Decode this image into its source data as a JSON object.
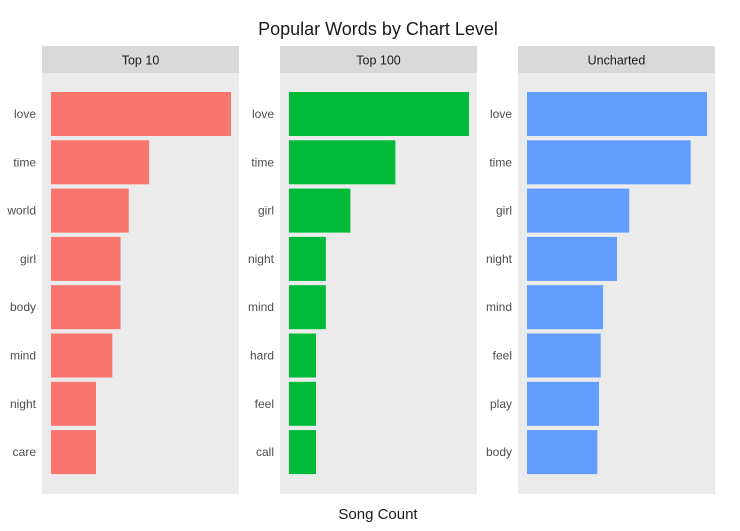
{
  "chart_data": {
    "type": "bar",
    "orientation": "horizontal",
    "title": "Popular Words by Chart Level",
    "xlabel": "Song Count",
    "ylabel": "",
    "grid": false,
    "x_axis_ticks_shown": false,
    "background_color": "#ebebeb",
    "strip_color": "#d9d9d9",
    "panels": [
      {
        "name": "Top 10",
        "color": "#f8766d",
        "categories": [
          "love",
          "time",
          "world",
          "girl",
          "body",
          "mind",
          "night",
          "care"
        ],
        "values": [
          22,
          12,
          9.5,
          8.5,
          8.5,
          7.5,
          5.5,
          5.5
        ]
      },
      {
        "name": "Top 100",
        "color": "#00ba38",
        "categories": [
          "love",
          "time",
          "girl",
          "night",
          "mind",
          "hard",
          "feel",
          "call"
        ],
        "values": [
          22,
          13,
          7.5,
          4.5,
          4.5,
          3.3,
          3.3,
          3.3
        ]
      },
      {
        "name": "Uncharted",
        "color": "#619cff",
        "categories": [
          "love",
          "time",
          "girl",
          "night",
          "mind",
          "feel",
          "play",
          "body"
        ],
        "values": [
          22,
          20,
          12.5,
          11,
          9.3,
          9,
          8.8,
          8.6
        ]
      }
    ],
    "xlim": [
      0,
      22
    ]
  }
}
